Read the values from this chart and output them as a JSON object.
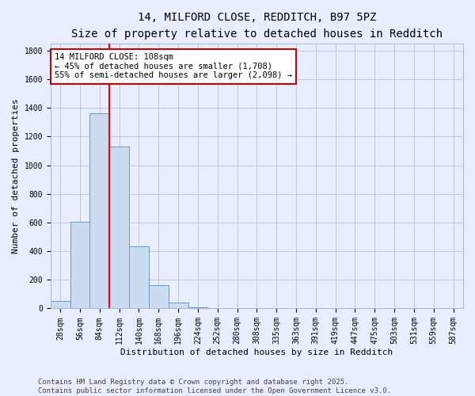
{
  "title_line1": "14, MILFORD CLOSE, REDDITCH, B97 5PZ",
  "title_line2": "Size of property relative to detached houses in Redditch",
  "xlabel": "Distribution of detached houses by size in Redditch",
  "ylabel": "Number of detached properties",
  "bar_labels": [
    "28sqm",
    "56sqm",
    "84sqm",
    "112sqm",
    "140sqm",
    "168sqm",
    "196sqm",
    "224sqm",
    "252sqm",
    "280sqm",
    "308sqm",
    "335sqm",
    "363sqm",
    "391sqm",
    "419sqm",
    "447sqm",
    "475sqm",
    "503sqm",
    "531sqm",
    "559sqm",
    "587sqm"
  ],
  "bar_values": [
    55,
    605,
    1365,
    1130,
    435,
    165,
    40,
    10,
    5,
    2,
    1,
    0,
    0,
    0,
    0,
    0,
    0,
    0,
    0,
    0,
    0
  ],
  "bar_color": "#ccdcf0",
  "bar_edge_color": "#6699cc",
  "grid_color": "#b0b8d8",
  "background_color": "#e8eeff",
  "red_line_x": 2.5,
  "annotation_line1": "14 MILFORD CLOSE: 108sqm",
  "annotation_line2": "← 45% of detached houses are smaller (1,708)",
  "annotation_line3": "55% of semi-detached houses are larger (2,098) →",
  "annotation_box_color": "#ffffff",
  "annotation_box_edge": "#cc0000",
  "ylim": [
    0,
    1850
  ],
  "yticks": [
    0,
    200,
    400,
    600,
    800,
    1000,
    1200,
    1400,
    1600,
    1800
  ],
  "footer_text": "Contains HM Land Registry data © Crown copyright and database right 2025.\nContains public sector information licensed under the Open Government Licence v3.0.",
  "title_fontsize": 10,
  "subtitle_fontsize": 9,
  "axis_label_fontsize": 8,
  "tick_fontsize": 7,
  "annotation_fontsize": 7.5,
  "footer_fontsize": 6.5
}
